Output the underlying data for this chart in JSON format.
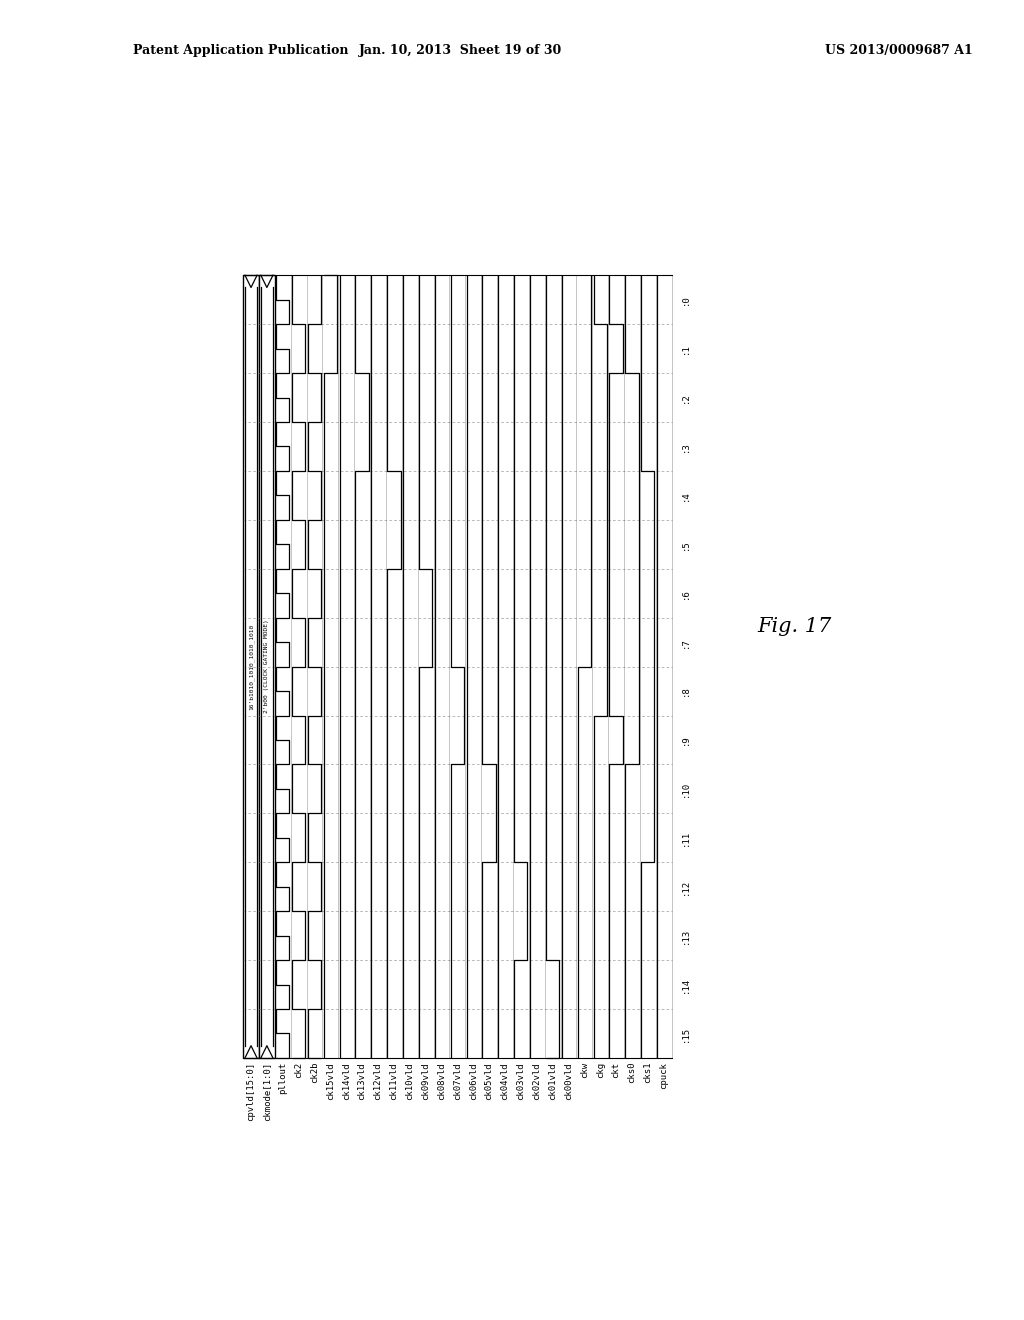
{
  "title_left": "Patent Application Publication",
  "title_mid": "Jan. 10, 2013  Sheet 19 of 30",
  "title_right": "US 2013/0009687 A1",
  "fig_label": "Fig. 17",
  "bg_color": "#ffffff",
  "signal_names": [
    "cpvld[15:0]",
    "ckmode[1:0]",
    "pllout",
    "ck2",
    "ck2b",
    "ck15vld",
    "ck14vld",
    "ck13vld",
    "ck12vld",
    "ck11vld",
    "ck10vld",
    "ck09vld",
    "ck08vld",
    "ck07vld",
    "ck06vld",
    "ck05vld",
    "ck04vld",
    "ck03vld",
    "ck02vld",
    "ck01vld",
    "ck00vld",
    "ckw",
    "ckg",
    "ckt",
    "cks0",
    "cks1",
    "cpuck"
  ],
  "num_cycles": 16,
  "line_color": "#000000",
  "dashed_color": "#888888",
  "font_size": 6.5,
  "header_font_size": 9
}
